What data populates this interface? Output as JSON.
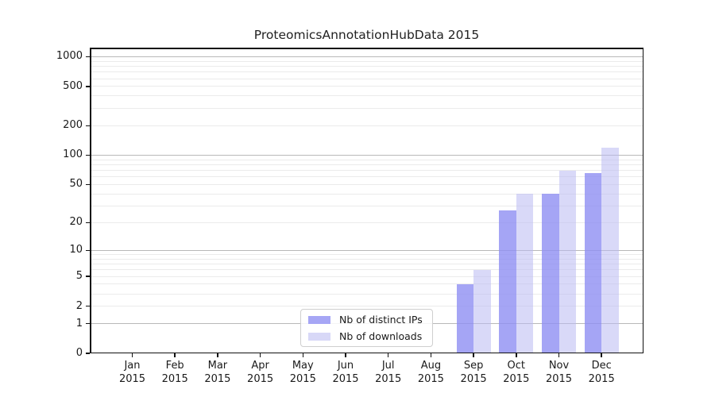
{
  "chart_data": {
    "type": "bar",
    "title": "ProteomicsAnnotationHubData 2015",
    "x_categories": [
      "Jan",
      "Feb",
      "Mar",
      "Apr",
      "May",
      "Jun",
      "Jul",
      "Aug",
      "Sep",
      "Oct",
      "Nov",
      "Dec"
    ],
    "x_year_label": "2015",
    "series": [
      {
        "name": "Nb of distinct IPs",
        "color": "#a6a6f5",
        "values": [
          0,
          0,
          0,
          0,
          0,
          0,
          0,
          0,
          4,
          27,
          40,
          66
        ]
      },
      {
        "name": "Nb of downloads",
        "color": "#d8d8f7",
        "values": [
          0,
          0,
          0,
          0,
          0,
          0,
          0,
          0,
          6,
          40,
          70,
          120
        ]
      }
    ],
    "y_scale": "log1p",
    "y_ticks": [
      0,
      1,
      2,
      5,
      10,
      20,
      50,
      100,
      200,
      500,
      1000
    ],
    "y_major_gridlines": [
      1,
      10,
      100,
      1000
    ],
    "ylim": [
      0,
      1300
    ],
    "grid": true,
    "legend": {
      "position": "lower-center",
      "labels": [
        "Nb of distinct IPs",
        "Nb of downloads"
      ]
    },
    "colors": {
      "grid_major": "#b8b8b8",
      "grid_minor": "#ebebeb",
      "spine": "#111111",
      "text": "#1a1a1a",
      "background": "#ffffff"
    }
  }
}
